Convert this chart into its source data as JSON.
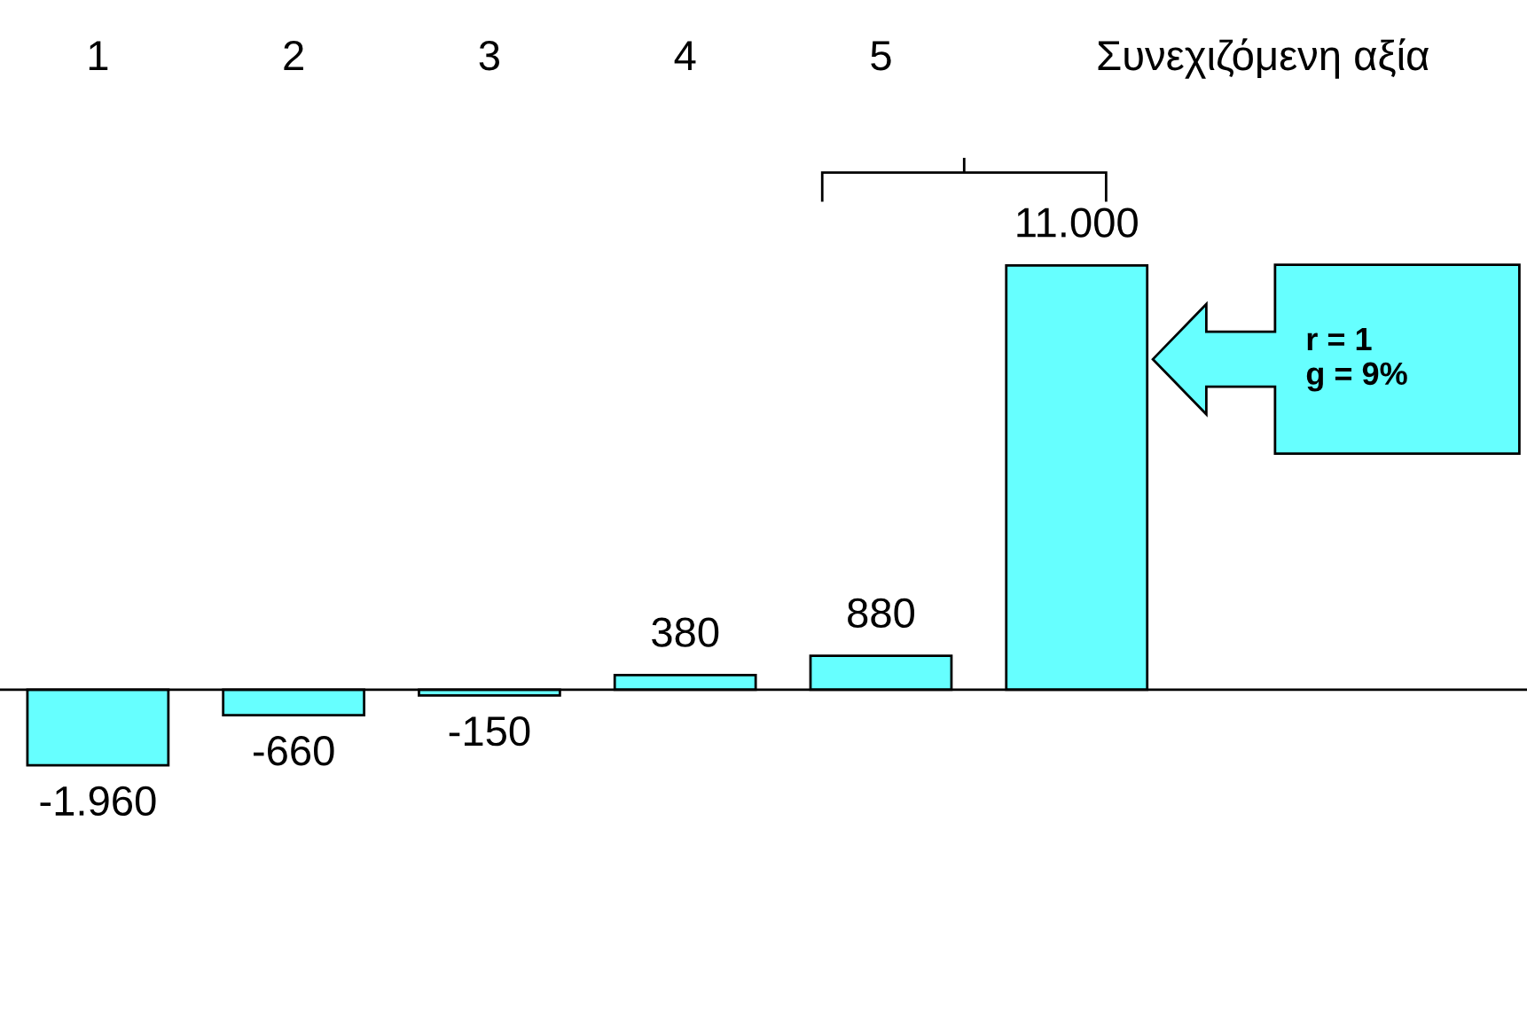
{
  "chart_data": {
    "type": "bar",
    "categories": [
      "1",
      "2",
      "3",
      "4",
      "5",
      "Συνεχιζόμενη αξία"
    ],
    "values": [
      -1960,
      -660,
      -150,
      380,
      880,
      11000
    ],
    "value_labels": [
      "-1.960",
      "-660",
      "-150",
      "380",
      "880",
      "11.000"
    ],
    "color": "#66ffff",
    "annotations": [
      "r = 1\ng = 9%"
    ],
    "grid": false
  }
}
